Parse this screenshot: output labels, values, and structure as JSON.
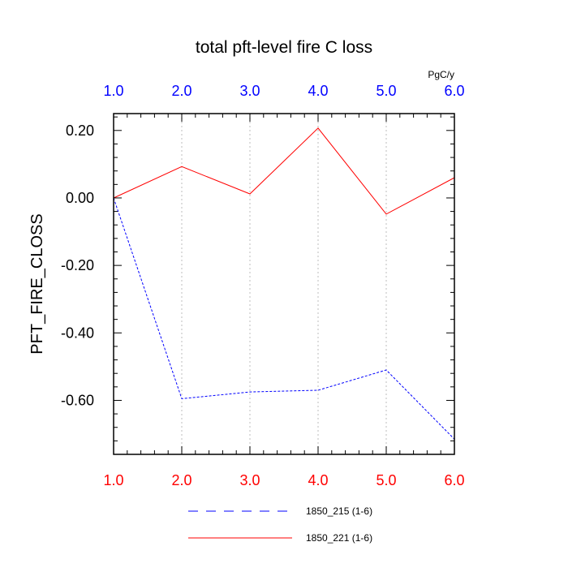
{
  "chart_data": {
    "type": "line",
    "title": "total pft-level fire C loss",
    "units": "PgC/y",
    "ylabel": "PFT_FIRE_CLOSS",
    "xlabel": "",
    "x": [
      1,
      2,
      3,
      4,
      5,
      6
    ],
    "xlim": [
      1.0,
      6.0
    ],
    "ylim": [
      -0.76,
      0.25
    ],
    "x_ticks": [
      1,
      2,
      3,
      4,
      5,
      6
    ],
    "x_tick_labels": [
      "1.0",
      "2.0",
      "3.0",
      "4.0",
      "5.0",
      "6.0"
    ],
    "y_ticks": [
      0.2,
      0.0,
      -0.2,
      -0.4,
      -0.6
    ],
    "y_tick_labels": [
      "0.20",
      "0.00",
      "-0.20",
      "-0.40",
      "-0.60"
    ],
    "top_axis_color": "#0000ff",
    "bottom_axis_color": "#ff0000",
    "grid": "vertical dotted",
    "legend_position": "bottom",
    "series": [
      {
        "name": "1850_215 (1-6)",
        "color": "#0000ff",
        "dash": "dashed",
        "values": [
          0.0,
          -0.595,
          -0.575,
          -0.57,
          -0.51,
          -0.715
        ]
      },
      {
        "name": "1850_221 (1-6)",
        "color": "#ff0000",
        "dash": "solid",
        "values": [
          0.0,
          0.093,
          0.012,
          0.207,
          -0.048,
          0.06
        ]
      }
    ]
  }
}
